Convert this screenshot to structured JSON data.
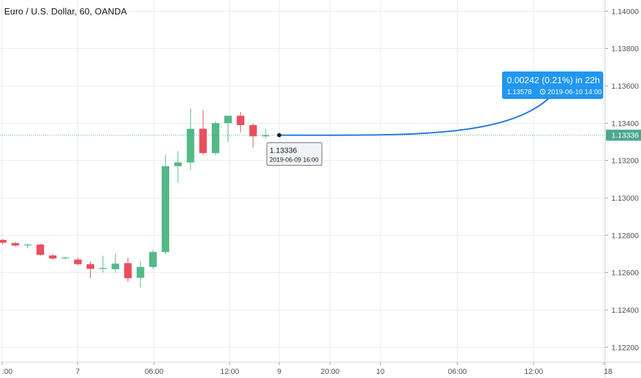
{
  "chart_data": {
    "type": "candlestick",
    "title": "Euro / U.S. Dollar, 60, OANDA",
    "symbol": "Euro / U.S. Dollar",
    "interval": "60",
    "exchange": "OANDA",
    "grid": true,
    "price_axis": {
      "ticks": [
        "1.14000",
        "1.13800",
        "1.13600",
        "1.13400",
        "1.13200",
        "1.13000",
        "1.12800",
        "1.12600",
        "1.12400",
        "1.12200"
      ],
      "ylim": [
        1.1212,
        1.1406
      ]
    },
    "time_axis": {
      "labels": [
        ":00",
        "7",
        "06:00",
        "12:00",
        "9",
        "20:00",
        "10",
        "06:00",
        "12:00",
        "18"
      ]
    },
    "candles": [
      {
        "o": 1.12775,
        "h": 1.1278,
        "l": 1.1275,
        "c": 1.1276
      },
      {
        "o": 1.12758,
        "h": 1.12765,
        "l": 1.1274,
        "c": 1.12745
      },
      {
        "o": 1.12748,
        "h": 1.12755,
        "l": 1.1273,
        "c": 1.1275
      },
      {
        "o": 1.1275,
        "h": 1.12755,
        "l": 1.1269,
        "c": 1.12695
      },
      {
        "o": 1.12692,
        "h": 1.127,
        "l": 1.1267,
        "c": 1.12675
      },
      {
        "o": 1.12678,
        "h": 1.12685,
        "l": 1.1267,
        "c": 1.1268
      },
      {
        "o": 1.1267,
        "h": 1.1268,
        "l": 1.1264,
        "c": 1.12645
      },
      {
        "o": 1.12645,
        "h": 1.1266,
        "l": 1.1257,
        "c": 1.1262
      },
      {
        "o": 1.1262,
        "h": 1.1269,
        "l": 1.126,
        "c": 1.12625
      },
      {
        "o": 1.12618,
        "h": 1.127,
        "l": 1.126,
        "c": 1.12648
      },
      {
        "o": 1.1265,
        "h": 1.1268,
        "l": 1.1255,
        "c": 1.1257
      },
      {
        "o": 1.12572,
        "h": 1.1266,
        "l": 1.1252,
        "c": 1.1263
      },
      {
        "o": 1.1263,
        "h": 1.1272,
        "l": 1.1262,
        "c": 1.1271
      },
      {
        "o": 1.1271,
        "h": 1.1323,
        "l": 1.127,
        "c": 1.1317
      },
      {
        "o": 1.1317,
        "h": 1.1325,
        "l": 1.1308,
        "c": 1.1319
      },
      {
        "o": 1.1319,
        "h": 1.1348,
        "l": 1.1315,
        "c": 1.1337
      },
      {
        "o": 1.1337,
        "h": 1.1347,
        "l": 1.1323,
        "c": 1.1324
      },
      {
        "o": 1.1324,
        "h": 1.1341,
        "l": 1.1323,
        "c": 1.134
      },
      {
        "o": 1.134,
        "h": 1.1344,
        "l": 1.133,
        "c": 1.1344
      },
      {
        "o": 1.1344,
        "h": 1.1346,
        "l": 1.1335,
        "c": 1.1339
      },
      {
        "o": 1.1339,
        "h": 1.134,
        "l": 1.1327,
        "c": 1.1333
      },
      {
        "o": 1.1333,
        "h": 1.1337,
        "l": 1.1332,
        "c": 1.13336
      }
    ],
    "last_price": "1.13336",
    "last_price_value": 1.13336,
    "colors": {
      "up": "#53b987",
      "down": "#eb4d5c",
      "grid": "#e6e9ee",
      "projection": "#2177e3",
      "last_price_line": "#4ca88b",
      "axis_text": "#4c525e"
    },
    "start_marker": {
      "price": "1.13336",
      "date": "2019-06-09 16:00"
    },
    "projection": {
      "change_text": "0.00242 (0.21%) in 22h",
      "target_price": "1.13578",
      "target_date": "2019-06-10  14:00",
      "target_value": 1.13578
    }
  }
}
